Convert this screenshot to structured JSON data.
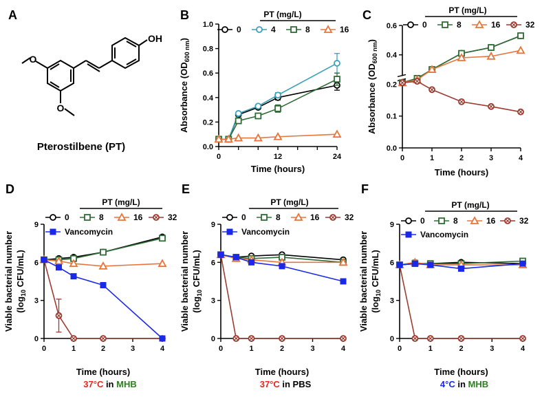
{
  "panels": {
    "A": {
      "label": "A",
      "compound_name": "Pterostilbene (PT)",
      "oh_label": "OH"
    },
    "B": {
      "label": "B"
    },
    "C": {
      "label": "C"
    },
    "D": {
      "label": "D",
      "cond_temp": "37°C",
      "cond_in": " in ",
      "cond_medium": "MHB"
    },
    "E": {
      "label": "E",
      "cond_temp": "37°C",
      "cond_in": " in ",
      "cond_medium": "PBS"
    },
    "F": {
      "label": "F",
      "cond_temp": "4°C",
      "cond_in": " in ",
      "cond_medium": "MHB"
    }
  },
  "colors": {
    "temp_red": "#e8261e",
    "medium_green": "#2e7d22",
    "temp_blue": "#1a28e8",
    "pbs_black": "#000000"
  },
  "chart_data": [
    {
      "id": "B",
      "type": "line",
      "legend_title": "PT (mg/L)",
      "xlabel": "Time (hours)",
      "ylabel_main": "Absorbance (OD",
      "ylabel_sub": "600 nm",
      "ylabel_end": ")",
      "xlim": [
        0,
        24
      ],
      "ylim": [
        0,
        1.0
      ],
      "xticks": [
        0,
        4,
        8,
        12,
        16,
        20,
        24
      ],
      "xtick_labels": [
        "0",
        "",
        "",
        "12",
        "",
        "",
        "24"
      ],
      "yticks": [
        0,
        0.2,
        0.4,
        0.6,
        0.8,
        1.0
      ],
      "ytick_labels": [
        "0.0",
        "0.2",
        "0.4",
        "0.6",
        "0.8",
        "1.0"
      ],
      "series": [
        {
          "name": "0",
          "color": "#000000",
          "marker": "circle",
          "x": [
            0,
            2,
            4,
            8,
            12,
            24
          ],
          "y": [
            0.06,
            0.06,
            0.26,
            0.32,
            0.4,
            0.5
          ],
          "err": [
            0.01,
            0.01,
            0.01,
            0.01,
            0.02,
            0.04
          ]
        },
        {
          "name": "4",
          "color": "#3aa0b8",
          "marker": "circle",
          "x": [
            0,
            2,
            4,
            8,
            12,
            24
          ],
          "y": [
            0.06,
            0.06,
            0.27,
            0.33,
            0.42,
            0.68
          ],
          "err": [
            0.01,
            0.01,
            0.01,
            0.01,
            0.02,
            0.08
          ]
        },
        {
          "name": "8",
          "color": "#2f6b35",
          "marker": "square",
          "x": [
            0,
            2,
            4,
            8,
            12,
            24
          ],
          "y": [
            0.06,
            0.06,
            0.21,
            0.25,
            0.31,
            0.55
          ],
          "err": [
            0.01,
            0.01,
            0.01,
            0.02,
            0.03,
            0.05
          ]
        },
        {
          "name": "16",
          "color": "#e8743a",
          "marker": "triangle",
          "x": [
            0,
            2,
            4,
            8,
            12,
            24
          ],
          "y": [
            0.06,
            0.06,
            0.07,
            0.07,
            0.08,
            0.1
          ],
          "err": [
            0.0,
            0.0,
            0.0,
            0.0,
            0.0,
            0.0
          ]
        }
      ]
    },
    {
      "id": "C",
      "type": "line",
      "legend_title": "PT (mg/L)",
      "xlabel": "Time (hours)",
      "ylabel_main": "Absorbance (OD",
      "ylabel_sub": "600 nm",
      "ylabel_end": ")",
      "xlim": [
        0,
        4
      ],
      "ylim": [
        0,
        0.6
      ],
      "axis_break": true,
      "xticks": [
        0,
        1,
        2,
        3,
        4
      ],
      "xtick_labels": [
        "0",
        "1",
        "2",
        "3",
        "4"
      ],
      "yticks": [
        0,
        0.1,
        0.2,
        0.4,
        0.6
      ],
      "ytick_labels": [
        "0.0",
        "0.1",
        "0.2",
        "0.4",
        "0.6"
      ],
      "series": [
        {
          "name": "0",
          "color": "#000000",
          "marker": "circle",
          "x": [
            0,
            0.5,
            1,
            2,
            3,
            4
          ],
          "y": [
            0.21,
            0.24,
            0.3,
            0.41,
            0.45,
            0.53
          ],
          "err": [
            0,
            0,
            0,
            0,
            0,
            0
          ]
        },
        {
          "name": "8",
          "color": "#2f6b35",
          "marker": "square",
          "x": [
            0,
            0.5,
            1,
            2,
            3,
            4
          ],
          "y": [
            0.21,
            0.24,
            0.3,
            0.41,
            0.45,
            0.53
          ],
          "err": [
            0,
            0,
            0,
            0,
            0,
            0
          ]
        },
        {
          "name": "16",
          "color": "#e8743a",
          "marker": "triangle",
          "x": [
            0,
            0.5,
            1,
            2,
            3,
            4
          ],
          "y": [
            0.21,
            0.23,
            0.3,
            0.38,
            0.39,
            0.43
          ],
          "err": [
            0,
            0,
            0,
            0,
            0,
            0
          ]
        },
        {
          "name": "32",
          "color": "#9c3a30",
          "marker": "crossed",
          "x": [
            0,
            0.5,
            1,
            2,
            3,
            4
          ],
          "y": [
            0.21,
            0.22,
            0.183,
            0.145,
            0.13,
            0.113
          ],
          "err": [
            0,
            0,
            0,
            0,
            0,
            0
          ]
        }
      ]
    },
    {
      "id": "D",
      "type": "line",
      "legend_title": "PT (mg/L)",
      "extra_legend": "Vancomycin",
      "xlabel": "Time (hours)",
      "ylabel_main": "Viable bacterial number",
      "ylabel2_pre": "(log",
      "ylabel2_sub": "10",
      "ylabel2_post": " CFU/mL)",
      "xlim": [
        0,
        4
      ],
      "ylim": [
        0,
        9
      ],
      "xticks": [
        0,
        1,
        2,
        3,
        4
      ],
      "xtick_labels": [
        "0",
        "1",
        "2",
        "3",
        "4"
      ],
      "yticks": [
        0,
        3,
        6,
        9
      ],
      "ytick_labels": [
        "0",
        "3",
        "6",
        "9"
      ],
      "series": [
        {
          "name": "0",
          "color": "#000000",
          "marker": "circle",
          "x": [
            0,
            0.5,
            1,
            2,
            4
          ],
          "y": [
            6.2,
            6.3,
            6.4,
            6.8,
            8.0
          ],
          "err": [
            0,
            0,
            0,
            0,
            0.1
          ]
        },
        {
          "name": "8",
          "color": "#2f6b35",
          "marker": "square",
          "x": [
            0,
            0.5,
            1,
            2,
            4
          ],
          "y": [
            6.2,
            6.2,
            6.3,
            6.8,
            7.9
          ],
          "err": [
            0,
            0,
            0,
            0,
            0
          ]
        },
        {
          "name": "16",
          "color": "#e8743a",
          "marker": "triangle",
          "x": [
            0,
            0.5,
            1,
            2,
            4
          ],
          "y": [
            6.2,
            6.1,
            5.9,
            5.7,
            5.9
          ],
          "err": [
            0,
            0,
            0,
            0,
            0
          ]
        },
        {
          "name": "32",
          "color": "#9c3a30",
          "marker": "crossed",
          "x": [
            0,
            0.5,
            1,
            2,
            4
          ],
          "y": [
            6.2,
            1.8,
            0,
            0,
            0
          ],
          "err": [
            0,
            1.3,
            0,
            0,
            0
          ]
        },
        {
          "name": "Vancomycin",
          "color": "#1a28e8",
          "marker": "filled-square",
          "x": [
            0,
            0.5,
            1,
            2,
            4
          ],
          "y": [
            6.2,
            5.6,
            4.9,
            4.2,
            0
          ],
          "err": [
            0,
            0,
            0,
            0,
            0
          ]
        }
      ]
    },
    {
      "id": "E",
      "type": "line",
      "legend_title": "PT (mg/L)",
      "extra_legend": "Vancomycin",
      "xlabel": "Time (hours)",
      "ylabel_main": "Viable bacterial number",
      "ylabel2_pre": "(log",
      "ylabel2_sub": "10",
      "ylabel2_post": " CFU/mL)",
      "xlim": [
        0,
        4
      ],
      "ylim": [
        0,
        9
      ],
      "xticks": [
        0,
        1,
        2,
        3,
        4
      ],
      "xtick_labels": [
        "0",
        "1",
        "2",
        "3",
        "4"
      ],
      "yticks": [
        0,
        3,
        6,
        9
      ],
      "ytick_labels": [
        "0",
        "3",
        "6",
        "9"
      ],
      "series": [
        {
          "name": "0",
          "color": "#000000",
          "marker": "circle",
          "x": [
            0,
            0.5,
            1,
            2,
            4
          ],
          "y": [
            6.6,
            6.4,
            6.5,
            6.6,
            6.2
          ],
          "err": [
            0,
            0,
            0,
            0,
            0
          ]
        },
        {
          "name": "8",
          "color": "#2f6b35",
          "marker": "square",
          "x": [
            0,
            0.5,
            1,
            2,
            4
          ],
          "y": [
            6.6,
            6.4,
            6.3,
            6.4,
            6.0
          ],
          "err": [
            0,
            0,
            0,
            0,
            0
          ]
        },
        {
          "name": "16",
          "color": "#e8743a",
          "marker": "triangle",
          "x": [
            0,
            0.5,
            1,
            2,
            4
          ],
          "y": [
            6.6,
            6.3,
            6.2,
            6.0,
            6.0
          ],
          "err": [
            0,
            0,
            0,
            0,
            0
          ]
        },
        {
          "name": "32",
          "color": "#9c3a30",
          "marker": "crossed",
          "x": [
            0,
            0.5,
            1,
            2,
            4
          ],
          "y": [
            6.6,
            0,
            0,
            0,
            0
          ],
          "err": [
            0,
            0,
            0,
            0,
            0
          ]
        },
        {
          "name": "Vancomycin",
          "color": "#1a28e8",
          "marker": "filled-square",
          "x": [
            0,
            0.5,
            1,
            2,
            4
          ],
          "y": [
            6.6,
            6.4,
            6.0,
            5.7,
            4.5
          ],
          "err": [
            0,
            0,
            0,
            0,
            0
          ]
        }
      ]
    },
    {
      "id": "F",
      "type": "line",
      "legend_title": "PT (mg/L)",
      "extra_legend": "Vancomycin",
      "xlabel": "Time (hours)",
      "ylabel_main": "Viable bacterial number",
      "ylabel2_pre": "(log",
      "ylabel2_sub": "10",
      "ylabel2_post": " CFU/mL)",
      "xlim": [
        0,
        4
      ],
      "ylim": [
        0,
        9
      ],
      "xticks": [
        0,
        1,
        2,
        3,
        4
      ],
      "xtick_labels": [
        "0",
        "1",
        "2",
        "3",
        "4"
      ],
      "yticks": [
        0,
        3,
        6,
        9
      ],
      "ytick_labels": [
        "0",
        "3",
        "6",
        "9"
      ],
      "series": [
        {
          "name": "0",
          "color": "#000000",
          "marker": "circle",
          "x": [
            0,
            0.5,
            1,
            2,
            4
          ],
          "y": [
            5.8,
            5.9,
            5.9,
            6.0,
            5.9
          ],
          "err": [
            0,
            0,
            0,
            0,
            0
          ]
        },
        {
          "name": "8",
          "color": "#2f6b35",
          "marker": "square",
          "x": [
            0,
            0.5,
            1,
            2,
            4
          ],
          "y": [
            5.8,
            5.9,
            5.9,
            5.9,
            6.1
          ],
          "err": [
            0,
            0,
            0,
            0,
            0
          ]
        },
        {
          "name": "16",
          "color": "#e8743a",
          "marker": "triangle",
          "x": [
            0,
            0.5,
            1,
            2,
            4
          ],
          "y": [
            5.8,
            6.0,
            5.8,
            5.8,
            5.8
          ],
          "err": [
            0,
            0.2,
            0,
            0,
            0
          ]
        },
        {
          "name": "32",
          "color": "#9c3a30",
          "marker": "crossed",
          "x": [
            0,
            0.5,
            1,
            2,
            4
          ],
          "y": [
            5.8,
            0,
            0,
            0,
            0
          ],
          "err": [
            0,
            0,
            0,
            0,
            0
          ]
        },
        {
          "name": "Vancomycin",
          "color": "#1a28e8",
          "marker": "filled-square",
          "x": [
            0,
            0.5,
            1,
            2,
            4
          ],
          "y": [
            5.8,
            5.9,
            5.8,
            5.5,
            5.9
          ],
          "err": [
            0,
            0,
            0,
            0,
            0
          ]
        }
      ]
    }
  ]
}
